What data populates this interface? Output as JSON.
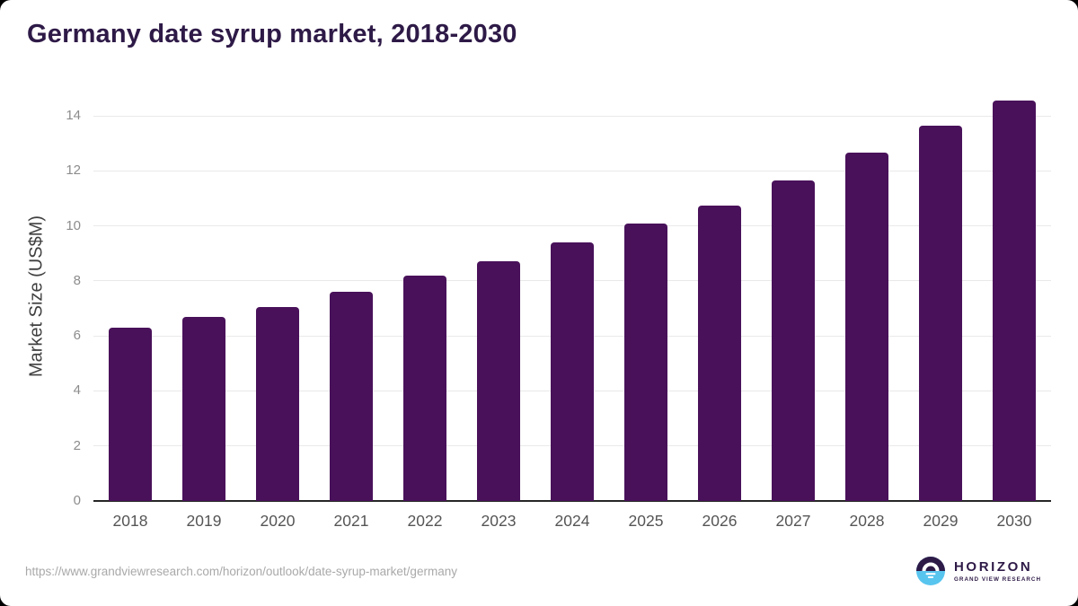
{
  "page": {
    "title": "Germany date syrup market, 2018-2030",
    "source_url": "https://www.grandviewresearch.com/horizon/outlook/date-syrup-market/germany"
  },
  "logo": {
    "name": "HORIZON",
    "subtitle": "GRAND VIEW RESEARCH",
    "icon": "horizon-sun-circle-icon"
  },
  "colors": {
    "bar": "#49115a",
    "title_text": "#2e1a47",
    "gridline": "#e9e9e9",
    "axis_line": "#262626",
    "y_tick_label": "#8c8c8c",
    "x_axis_label": "#555555",
    "y_axis_title": "#404040",
    "source_url": "#a9a9a9",
    "logo_purple": "#2e1a47",
    "logo_blue": "#58c5ef"
  },
  "chart_data": {
    "type": "bar",
    "title": "Germany date syrup market, 2018-2030",
    "categories": [
      "2018",
      "2019",
      "2020",
      "2021",
      "2022",
      "2023",
      "2024",
      "2025",
      "2026",
      "2027",
      "2028",
      "2029",
      "2030"
    ],
    "values": [
      6.3,
      6.7,
      7.05,
      7.6,
      8.2,
      8.7,
      9.4,
      10.1,
      10.75,
      11.65,
      12.65,
      13.65,
      14.55
    ],
    "xlabel": "",
    "ylabel": "Market Size (US$M)",
    "ylim": [
      0,
      14.95
    ],
    "yticks": [
      0,
      2,
      4,
      6,
      8,
      10,
      12,
      14
    ],
    "grid": true,
    "legend": false,
    "bar_color": "#49115a"
  }
}
